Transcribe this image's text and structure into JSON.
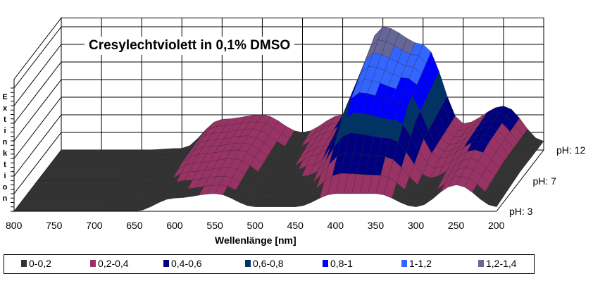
{
  "chart_data": {
    "type": "surface",
    "title": "Cresylechtviolett in 0,1% DMSO",
    "xlabel": "Wellenlänge [nm]",
    "zlabel": "Extinktion",
    "x": [
      800,
      750,
      700,
      650,
      600,
      550,
      500,
      450,
      400,
      350,
      300,
      250,
      200
    ],
    "x_ticks": [
      "800",
      "750",
      "700",
      "650",
      "600",
      "550",
      "500",
      "450",
      "400",
      "350",
      "300",
      "250",
      "200"
    ],
    "depth_ticks": [
      "pH: 3",
      "pH: 7",
      "pH: 12"
    ],
    "series": [
      {
        "name": "pH: 3",
        "values": [
          0,
          0,
          0,
          0,
          0.15,
          0.2,
          0.05,
          0.05,
          0.2,
          0.2,
          0.05,
          0.3,
          0.05
        ]
      },
      {
        "name": "pH: 7",
        "values": [
          0,
          0,
          0,
          0.05,
          0.3,
          0.35,
          0.1,
          0.3,
          1.0,
          0.9,
          0.25,
          0.45,
          0.1
        ]
      },
      {
        "name": "pH: 12",
        "values": [
          0,
          0,
          0,
          0.02,
          0.35,
          0.4,
          0.2,
          0.4,
          1.4,
          1.2,
          0.3,
          0.5,
          0.1
        ]
      }
    ],
    "zlim": [
      0,
      1.4
    ],
    "grid": true,
    "legend_position": "bottom",
    "legend": [
      {
        "label": "0-0,2",
        "color": "#333333"
      },
      {
        "label": "0,2-0,4",
        "color": "#993366"
      },
      {
        "label": "0,4-0,6",
        "color": "#000080"
      },
      {
        "label": "0,6-0,8",
        "color": "#003366"
      },
      {
        "label": "0,8-1",
        "color": "#0000FF"
      },
      {
        "label": "1-1,2",
        "color": "#3366FF"
      },
      {
        "label": "1,2-1,4",
        "color": "#666699"
      }
    ],
    "top_color": "#CCCCFF"
  }
}
